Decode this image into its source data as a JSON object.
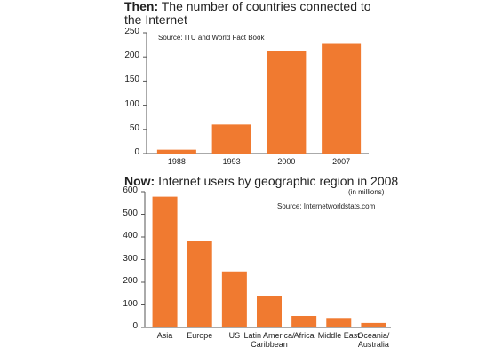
{
  "chart_data": [
    {
      "type": "bar",
      "title_lead": "Then:",
      "title": "The number of countries connected to the Internet",
      "source": "Source: ITU and World Fact Book",
      "categories": [
        "1988",
        "1993",
        "2000",
        "2007"
      ],
      "values": [
        8,
        60,
        213,
        227
      ],
      "color": "#f07a30",
      "ylim": [
        0,
        250
      ],
      "yticks": [
        0,
        50,
        100,
        150,
        200,
        250
      ]
    },
    {
      "type": "bar",
      "title_lead": "Now:",
      "title": "Internet users by geographic region in 2008",
      "subtitle": "(in millions)",
      "source": "Source: Internetworldstats.com",
      "categories": [
        "Asia",
        "Europe",
        "US",
        "Latin America/ Caribbean",
        "Africa",
        "Middle East",
        "Oceania/ Australia"
      ],
      "values": [
        578,
        384,
        248,
        139,
        51,
        42,
        20
      ],
      "color": "#f07a30",
      "ylim": [
        0,
        600
      ],
      "yticks": [
        0,
        100,
        200,
        300,
        400,
        500,
        600
      ]
    }
  ]
}
